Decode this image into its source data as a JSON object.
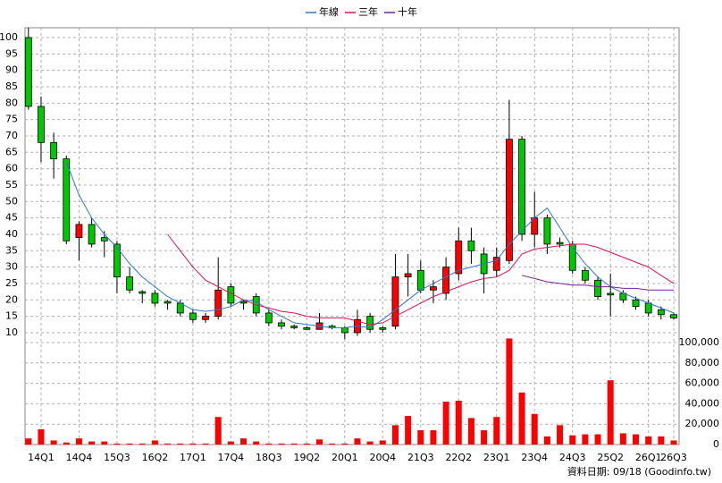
{
  "chart_data": {
    "type": "candlestick",
    "legend": "top",
    "grid": true,
    "note": "資料日期: 09/18 (Goodinfo.tw)",
    "up_color": "#ff0000",
    "down_color": "#00c800",
    "volume_color": "#ff0000",
    "categories": [
      null,
      "14Q1",
      null,
      null,
      "14Q4",
      null,
      null,
      "15Q3",
      null,
      null,
      "16Q2",
      null,
      null,
      "17Q1",
      null,
      null,
      "17Q4",
      null,
      null,
      "18Q3",
      null,
      null,
      "19Q2",
      null,
      null,
      "20Q1",
      null,
      null,
      "20Q4",
      null,
      null,
      "21Q3",
      null,
      null,
      "22Q2",
      null,
      null,
      "23Q1",
      null,
      null,
      "23Q4",
      null,
      null,
      "24Q3",
      null,
      null,
      "25Q2",
      null,
      null,
      "26Q1",
      null,
      "26Q3"
    ],
    "open": [
      100,
      79,
      68,
      63,
      39,
      43,
      39,
      37,
      27,
      22.5,
      22,
      19.5,
      19,
      16,
      14,
      15,
      24,
      19.5,
      21,
      16,
      13,
      12,
      11.5,
      11,
      12,
      11.5,
      10,
      15,
      11.5,
      12,
      27,
      29,
      23,
      22,
      28,
      38,
      34,
      29,
      32,
      69,
      40,
      45,
      37.5,
      37,
      29,
      26,
      22,
      22,
      20,
      19,
      17,
      15.5
    ],
    "high": [
      103,
      82,
      71,
      64,
      44,
      45,
      41,
      38,
      30,
      23,
      23,
      20,
      20,
      17,
      16,
      33,
      25,
      20,
      22,
      17,
      14,
      12.5,
      12,
      16,
      12.5,
      12,
      17,
      16,
      12,
      34,
      34,
      32,
      26,
      33,
      42,
      42,
      36,
      36,
      81,
      70,
      53,
      46,
      39,
      38,
      30,
      27,
      28,
      23,
      21,
      20,
      18,
      16
    ],
    "low": [
      78,
      62,
      57,
      37,
      32,
      36,
      33,
      22,
      22,
      19,
      18,
      17,
      15,
      13,
      13,
      14,
      18,
      17,
      15,
      12,
      11,
      11,
      11,
      11,
      11,
      8,
      9,
      10,
      10,
      11,
      21,
      22,
      19,
      20,
      26,
      31,
      22,
      27,
      31,
      38,
      36,
      34,
      36,
      28,
      25,
      20,
      15,
      19,
      17,
      15,
      14,
      14
    ],
    "close": [
      79,
      68,
      63,
      38,
      43,
      37,
      38,
      27,
      23,
      22,
      19,
      19,
      16,
      14,
      15,
      23,
      19,
      19,
      16,
      13,
      12,
      11.5,
      11,
      13,
      11.5,
      10,
      14,
      11,
      11,
      27,
      28,
      23,
      24,
      30,
      38,
      35,
      28,
      33,
      69,
      40,
      45,
      37,
      37,
      29,
      26,
      21,
      21.5,
      20,
      18,
      16,
      15.5,
      14.5
    ],
    "volume": [
      6000,
      15000,
      4000,
      2000,
      6000,
      3000,
      3000,
      1000,
      1000,
      1000,
      4000,
      1000,
      1000,
      1000,
      1000,
      27000,
      3000,
      6000,
      3000,
      1000,
      1000,
      1000,
      1000,
      5000,
      1000,
      1000,
      6000,
      3000,
      4000,
      19000,
      28000,
      14000,
      14000,
      42000,
      43000,
      26000,
      14000,
      27000,
      104000,
      51000,
      30000,
      8000,
      19000,
      9000,
      10000,
      10000,
      63000,
      11000,
      10000,
      8000,
      8000,
      4000
    ],
    "series": [
      {
        "name": "年線",
        "color": "#2f78d0",
        "values": [
          null,
          null,
          null,
          62,
          52,
          45,
          40,
          36,
          31,
          27,
          24,
          21,
          19,
          17,
          16.5,
          17,
          18,
          20,
          19.5,
          17,
          15,
          13,
          12.5,
          12,
          11.5,
          11.5,
          12,
          11.5,
          14,
          17,
          20,
          23,
          25,
          27,
          29,
          30,
          31,
          32,
          37,
          41,
          45,
          48,
          42,
          36,
          31,
          27,
          24,
          22,
          20.5,
          19,
          17.5,
          16
        ]
      },
      {
        "name": "三年",
        "color": "#e0105a",
        "values": [
          null,
          null,
          null,
          null,
          null,
          null,
          null,
          null,
          null,
          null,
          null,
          40,
          35,
          30,
          26,
          24,
          22,
          20,
          18.5,
          17.5,
          16.5,
          16,
          15,
          14.5,
          14.5,
          14.5,
          13.5,
          12.5,
          13,
          15,
          17,
          19,
          21,
          22.5,
          24,
          25.5,
          26.5,
          27,
          29,
          34,
          35.5,
          36,
          36.5,
          37,
          37,
          36,
          34.5,
          33,
          31.5,
          30,
          27.5,
          25
        ]
      },
      {
        "name": "十年",
        "color": "#7a1e9a",
        "values": [
          null,
          null,
          null,
          null,
          null,
          null,
          null,
          null,
          null,
          null,
          null,
          null,
          null,
          null,
          null,
          null,
          null,
          null,
          null,
          null,
          null,
          null,
          null,
          null,
          null,
          null,
          null,
          null,
          null,
          null,
          null,
          null,
          null,
          null,
          null,
          null,
          null,
          null,
          null,
          27.5,
          26.5,
          25.5,
          25,
          24.5,
          24.5,
          24,
          24,
          23.5,
          23.5,
          23,
          23,
          23
        ]
      }
    ],
    "ylim": [
      7.8,
      103
    ],
    "yticks": [
      10,
      15,
      20,
      25,
      30,
      35,
      40,
      45,
      50,
      55,
      60,
      65,
      70,
      75,
      80,
      85,
      90,
      95,
      100
    ],
    "y2lim": [
      0,
      102600
    ],
    "y2ticks": [
      0,
      {
        "value": 20000,
        "label": "20,000"
      },
      {
        "value": 40000,
        "label": "40,000"
      },
      {
        "value": 60000,
        "label": "60,000"
      },
      {
        "value": 80000,
        "label": "80,000"
      },
      {
        "value": 100000,
        "label": "100,000"
      }
    ]
  }
}
